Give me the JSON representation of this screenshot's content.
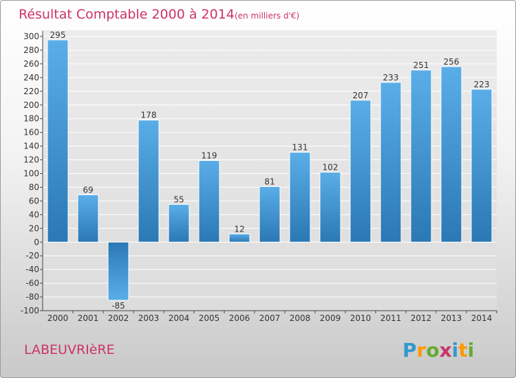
{
  "title": "Résultat Comptable 2000 à 2014",
  "unit": "(en milliers d'€)",
  "town": "LABEUVRIèRE",
  "logo": {
    "text": "Proxiti",
    "letters": [
      {
        "ch": "P",
        "color": "#3399cc"
      },
      {
        "ch": "r",
        "color": "#ff9900"
      },
      {
        "ch": "o",
        "color": "#66aa33"
      },
      {
        "ch": "x",
        "color": "#cc3366"
      },
      {
        "ch": "i",
        "color": "#3399cc"
      },
      {
        "ch": "t",
        "color": "#ff9900"
      },
      {
        "ch": "i",
        "color": "#66aa33"
      }
    ]
  },
  "chart_data": {
    "type": "bar",
    "title": "Résultat Comptable 2000 à 2014",
    "xlabel": "",
    "ylabel": "",
    "categories": [
      "2000",
      "2001",
      "2002",
      "2003",
      "2004",
      "2005",
      "2006",
      "2007",
      "2008",
      "2009",
      "2010",
      "2011",
      "2012",
      "2013",
      "2014"
    ],
    "values": [
      295,
      69,
      -85,
      178,
      55,
      119,
      12,
      81,
      131,
      102,
      207,
      233,
      251,
      256,
      223
    ],
    "ylim": [
      -100,
      300
    ],
    "ytick_step": 20,
    "grid": true,
    "bar_colors": {
      "top": "#5aaee8",
      "bottom": "#2a78b4"
    }
  }
}
